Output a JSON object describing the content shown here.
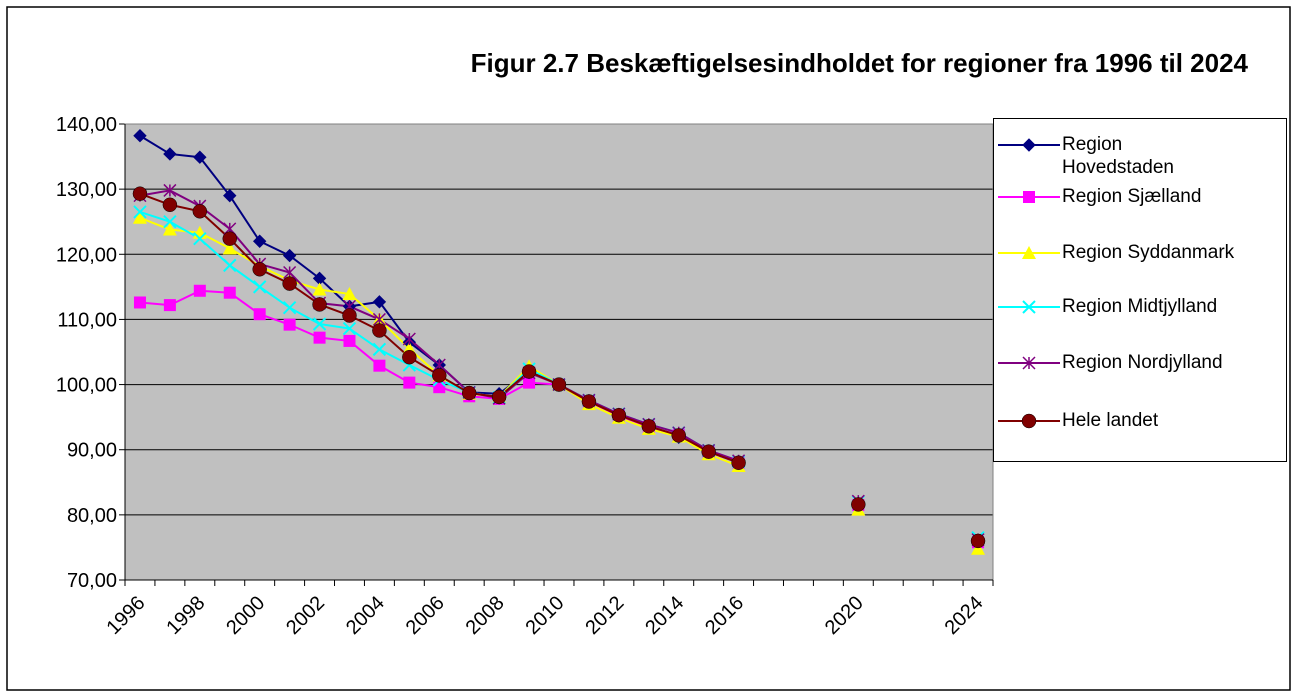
{
  "chart_data": {
    "type": "line",
    "title": "Figur 2.7 Beskæftigelsesindholdet for regioner fra 1996 til 2024",
    "categories": [
      "1996",
      null,
      "1998",
      null,
      "2000",
      null,
      "2002",
      null,
      "2004",
      null,
      "2006",
      null,
      "2008",
      null,
      "2010",
      null,
      "2012",
      null,
      "2014",
      null,
      "2016",
      null,
      null,
      null,
      "2020",
      null,
      null,
      null,
      "2024"
    ],
    "ylim": [
      70,
      140
    ],
    "yticks": [
      {
        "value": 70,
        "label": "70,00"
      },
      {
        "value": 80,
        "label": "80,00"
      },
      {
        "value": 90,
        "label": "90,00"
      },
      {
        "value": 100,
        "label": "100,00"
      },
      {
        "value": 110,
        "label": "110,00"
      },
      {
        "value": 120,
        "label": "120,00"
      },
      {
        "value": 130,
        "label": "130,00"
      },
      {
        "value": 140,
        "label": "140,00"
      }
    ],
    "grid": true,
    "legend": "right",
    "series": [
      {
        "name": "Region Hovedstaden",
        "color": "#000080",
        "marker": "diamond",
        "values": [
          138.2,
          135.4,
          134.9,
          129.0,
          122.0,
          119.8,
          116.3,
          112.0,
          112.7,
          106.5,
          103.0,
          98.8,
          98.6,
          102.0,
          100,
          97.5,
          95.3,
          93.6,
          91.9,
          89.7,
          88.0,
          null,
          null,
          null,
          81.6,
          null,
          null,
          null,
          75.9
        ]
      },
      {
        "name": "Region Sjælland",
        "color": "#ff00ff",
        "marker": "square",
        "values": [
          112.6,
          112.2,
          114.4,
          114.1,
          110.8,
          109.2,
          107.2,
          106.7,
          102.9,
          100.3,
          99.6,
          98.2,
          97.8,
          100.3,
          100,
          97.4,
          95.2,
          93.5,
          92.3,
          89.7,
          88.0,
          null,
          null,
          null,
          81.5,
          null,
          null,
          null,
          75.8
        ]
      },
      {
        "name": "Region Syddanmark",
        "color": "#ffff00",
        "marker": "triangle",
        "values": [
          125.6,
          123.8,
          123.3,
          120.9,
          118.2,
          116.0,
          114.6,
          113.9,
          110.0,
          105.5,
          101.4,
          98.6,
          98.1,
          102.8,
          100,
          97.0,
          94.9,
          93.2,
          92.0,
          89.3,
          87.5,
          null,
          null,
          null,
          80.8,
          null,
          null,
          null,
          74.8
        ]
      },
      {
        "name": "Region Midtjylland",
        "color": "#00ffff",
        "marker": "x",
        "values": [
          126.5,
          125.0,
          122.4,
          118.3,
          115.0,
          111.8,
          109.3,
          108.6,
          105.4,
          103.0,
          100.7,
          98.8,
          98.0,
          102.4,
          100,
          97.6,
          95.5,
          93.9,
          92.6,
          89.9,
          88.2,
          null,
          null,
          null,
          82.0,
          null,
          null,
          null,
          76.5
        ]
      },
      {
        "name": "Region Nordjylland",
        "color": "#800080",
        "marker": "star",
        "values": [
          129.0,
          129.8,
          127.4,
          123.9,
          118.5,
          117.2,
          112.5,
          112.0,
          110.0,
          107.0,
          103.0,
          98.8,
          97.9,
          101.8,
          100,
          97.6,
          95.5,
          93.9,
          92.6,
          89.9,
          88.3,
          null,
          null,
          null,
          82.1,
          null,
          null,
          null,
          76.2
        ]
      },
      {
        "name": "Hele landet",
        "color": "#800000",
        "marker": "circle",
        "values": [
          129.3,
          127.6,
          126.6,
          122.4,
          117.7,
          115.5,
          112.3,
          110.6,
          108.3,
          104.2,
          101.4,
          98.7,
          98.1,
          102.0,
          100,
          97.4,
          95.3,
          93.6,
          92.2,
          89.7,
          88.0,
          null,
          null,
          null,
          81.6,
          null,
          null,
          null,
          76.0
        ]
      }
    ]
  }
}
